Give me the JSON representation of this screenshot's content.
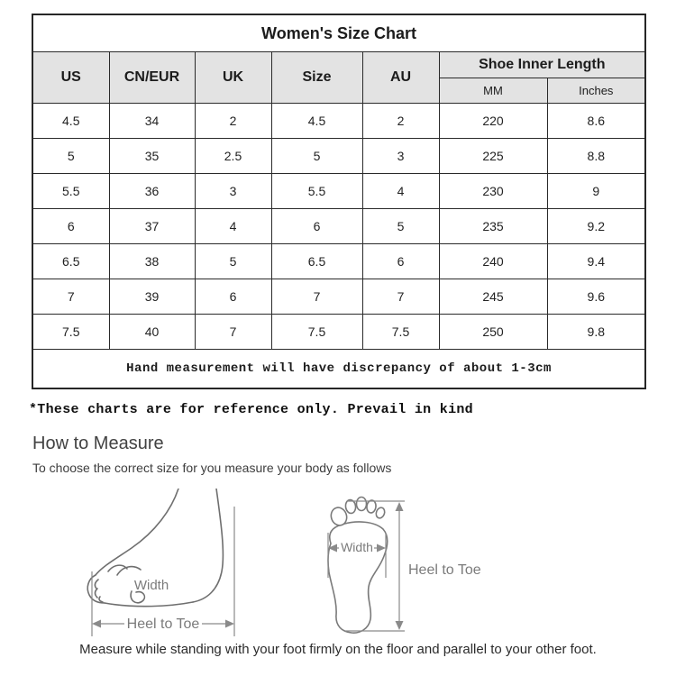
{
  "size_chart": {
    "title": "Women's Size Chart",
    "columns": [
      "US",
      "CN/EUR",
      "UK",
      "Size",
      "AU"
    ],
    "inner_length_header": "Shoe Inner Length",
    "inner_length_subcolumns": [
      "MM",
      "Inches"
    ],
    "rows": [
      [
        "4.5",
        "34",
        "2",
        "4.5",
        "2",
        "220",
        "8.6"
      ],
      [
        "5",
        "35",
        "2.5",
        "5",
        "3",
        "225",
        "8.8"
      ],
      [
        "5.5",
        "36",
        "3",
        "5.5",
        "4",
        "230",
        "9"
      ],
      [
        "6",
        "37",
        "4",
        "6",
        "5",
        "235",
        "9.2"
      ],
      [
        "6.5",
        "38",
        "5",
        "6.5",
        "6",
        "240",
        "9.4"
      ],
      [
        "7",
        "39",
        "6",
        "7",
        "7",
        "245",
        "9.6"
      ],
      [
        "7.5",
        "40",
        "7",
        "7.5",
        "7.5",
        "250",
        "9.8"
      ]
    ],
    "footnote": "Hand measurement will have discrepancy of about 1-3cm"
  },
  "notes": {
    "reference_note": "*These charts are for reference only. Prevail in kind",
    "how_to_measure_title": "How to Measure",
    "how_to_measure_subtitle": "To choose the correct size for you measure your body as follows",
    "bottom_caption": "Measure while standing with your foot firmly on the floor and parallel to your other foot."
  },
  "diagram": {
    "side_view": {
      "width_label": "Width",
      "heel_to_toe_label": "Heel to Toe"
    },
    "top_view": {
      "width_label": "Width",
      "heel_to_toe_label": "Heel to Toe"
    }
  },
  "colors": {
    "header_bg": "#e3e3e3",
    "table_border": "#262626",
    "diagram_line": "#8a8a8a",
    "diagram_text": "#7b7b7b"
  }
}
